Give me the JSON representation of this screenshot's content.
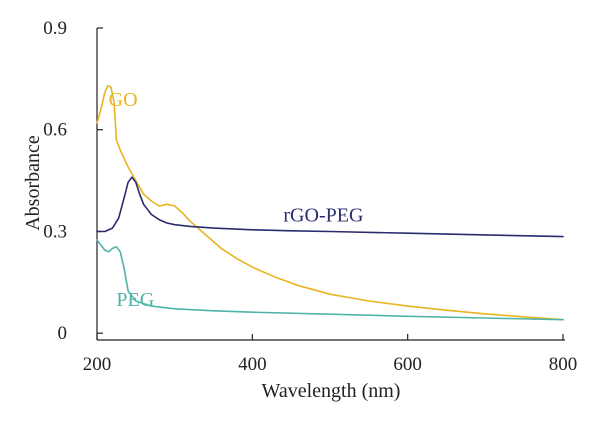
{
  "chart_data": {
    "type": "line",
    "title": "",
    "xlabel": "Wavelength (nm)",
    "ylabel": "Absorbance",
    "xlim": [
      200,
      800
    ],
    "ylim": [
      -0.02,
      0.9
    ],
    "xticks": [
      200,
      400,
      600,
      800
    ],
    "xtick_labels": [
      "200",
      "400",
      "600",
      "800"
    ],
    "yticks": [
      0,
      0.3,
      0.6,
      0.9
    ],
    "ytick_labels": [
      "0",
      "0.3",
      "0.6",
      "0.9"
    ],
    "grid": false,
    "legend": "none",
    "series": [
      {
        "name": "GO",
        "color": "#E8B422",
        "label_at": [
          215,
          0.67
        ],
        "x": [
          200,
          205,
          210,
          214,
          218,
          222,
          225,
          230,
          240,
          250,
          260,
          270,
          280,
          290,
          300,
          310,
          320,
          340,
          360,
          380,
          400,
          430,
          460,
          500,
          550,
          600,
          650,
          700,
          750,
          800
        ],
        "y": [
          0.62,
          0.66,
          0.71,
          0.73,
          0.725,
          0.68,
          0.57,
          0.54,
          0.49,
          0.45,
          0.41,
          0.39,
          0.375,
          0.38,
          0.375,
          0.355,
          0.33,
          0.29,
          0.25,
          0.22,
          0.195,
          0.165,
          0.14,
          0.115,
          0.095,
          0.08,
          0.068,
          0.057,
          0.048,
          0.04
        ]
      },
      {
        "name": "rGO-PEG",
        "color": "#2B2C6E",
        "label_at": [
          440,
          0.33
        ],
        "x": [
          200,
          210,
          220,
          228,
          235,
          240,
          245,
          250,
          255,
          260,
          270,
          280,
          290,
          300,
          320,
          350,
          400,
          450,
          500,
          600,
          700,
          800
        ],
        "y": [
          0.3,
          0.3,
          0.31,
          0.34,
          0.4,
          0.445,
          0.46,
          0.445,
          0.41,
          0.38,
          0.35,
          0.335,
          0.325,
          0.32,
          0.315,
          0.31,
          0.305,
          0.302,
          0.3,
          0.295,
          0.29,
          0.285
        ]
      },
      {
        "name": "PEG",
        "color": "#4FB4A8",
        "label_at": [
          225,
          0.08
        ],
        "x": [
          200,
          205,
          210,
          215,
          220,
          225,
          230,
          235,
          240,
          250,
          270,
          300,
          350,
          400,
          500,
          600,
          700,
          800
        ],
        "y": [
          0.275,
          0.26,
          0.245,
          0.24,
          0.25,
          0.255,
          0.24,
          0.19,
          0.125,
          0.095,
          0.08,
          0.072,
          0.066,
          0.062,
          0.056,
          0.05,
          0.045,
          0.04
        ]
      }
    ]
  }
}
